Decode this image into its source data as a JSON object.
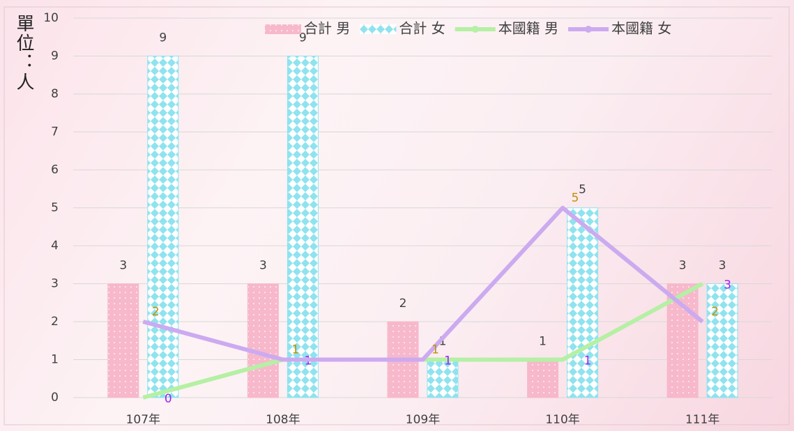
{
  "chart_data": {
    "type": "combo",
    "y_label": "單位：人",
    "categories": [
      "107年",
      "108年",
      "109年",
      "110年",
      "111年"
    ],
    "series": [
      {
        "name": "合計 男",
        "type": "bar",
        "color": "#f7b8cc",
        "label_color": "#404040",
        "values": [
          3,
          3,
          2,
          1,
          3
        ]
      },
      {
        "name": "合計 女",
        "type": "bar",
        "color": "#8fe3ee",
        "label_color": "#404040",
        "values": [
          9,
          9,
          1,
          5,
          3
        ]
      },
      {
        "name": "本國籍 男",
        "type": "line",
        "color": "#b5f0a4",
        "label_color": "#a020f0",
        "values": [
          0,
          1,
          1,
          1,
          3
        ]
      },
      {
        "name": "本國籍 女",
        "type": "line",
        "color": "#ccaaf0",
        "label_color": "#c09000",
        "values": [
          2,
          1,
          1,
          5,
          2
        ]
      }
    ],
    "ylim": [
      0,
      10
    ],
    "yticks": [
      0,
      1,
      2,
      3,
      4,
      5,
      6,
      7,
      8,
      9,
      10
    ],
    "grid": true
  }
}
